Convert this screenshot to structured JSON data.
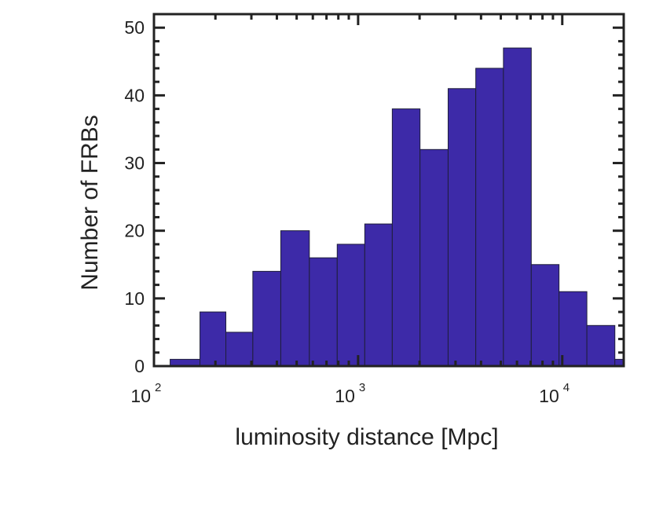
{
  "chart_data": {
    "type": "bar",
    "title": "",
    "xlabel": "luminosity distance [Mpc]",
    "ylabel": "Number of FRBs",
    "x_scale": "log",
    "xlim": [
      100,
      20000
    ],
    "ylim": [
      0,
      52
    ],
    "grid": false,
    "bar_color": "#3d2aa8",
    "bin_edges": [
      120,
      168,
      225,
      305,
      418,
      577,
      790,
      1078,
      1470,
      2010,
      2760,
      3770,
      5150,
      7050,
      9640,
      13200,
      18100,
      20000
    ],
    "values": [
      1,
      8,
      5,
      14,
      20,
      16,
      18,
      21,
      38,
      32,
      41,
      44,
      47,
      15,
      11,
      6,
      1
    ],
    "x_ticks": [
      {
        "value": 100,
        "base": "10",
        "exponent": "2"
      },
      {
        "value": 1000,
        "base": "10",
        "exponent": "3"
      },
      {
        "value": 10000,
        "base": "10",
        "exponent": "4"
      }
    ],
    "y_ticks": [
      {
        "value": 0,
        "label": "0"
      },
      {
        "value": 10,
        "label": "10"
      },
      {
        "value": 20,
        "label": "20"
      },
      {
        "value": 30,
        "label": "30"
      },
      {
        "value": 40,
        "label": "40"
      },
      {
        "value": 50,
        "label": "50"
      }
    ]
  }
}
